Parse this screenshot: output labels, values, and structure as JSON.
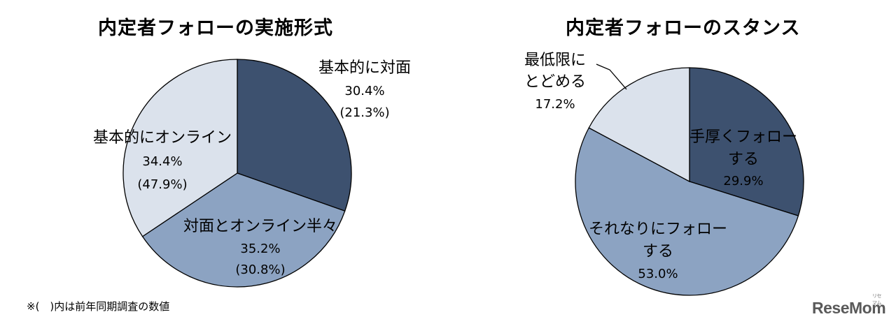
{
  "chart_data": [
    {
      "type": "pie",
      "title": "内定者フォローの実施形式",
      "colors": [
        "#3d516f",
        "#8ca3c2",
        "#dbe2ec"
      ],
      "slices": [
        {
          "label": "基本的に対面",
          "value": 30.4,
          "value_text": "30.4%",
          "previous_text": "(21.3%)"
        },
        {
          "label": "対面とオンライン半々",
          "value": 35.2,
          "value_text": "35.2%",
          "previous_text": "(30.8%)"
        },
        {
          "label": "基本的にオンライン",
          "value": 34.4,
          "value_text": "34.4%",
          "previous_text": "(47.9%)"
        }
      ]
    },
    {
      "type": "pie",
      "title": "内定者フォローのスタンス",
      "colors": [
        "#3d516f",
        "#8ca3c2",
        "#dbe2ec"
      ],
      "slices": [
        {
          "label_lines": [
            "手厚くフォロー",
            "する"
          ],
          "value": 29.9,
          "value_text": "29.9%"
        },
        {
          "label_lines": [
            "それなりにフォロー",
            "する"
          ],
          "value": 53.0,
          "value_text": "53.0%"
        },
        {
          "label_lines": [
            "最低限に",
            "とどめる"
          ],
          "value": 17.2,
          "value_text": "17.2%"
        }
      ]
    }
  ],
  "footnote": "※(　)内は前年同期調査の数値",
  "logo": {
    "text": "ReseMom",
    "small_text": "リセマム"
  }
}
